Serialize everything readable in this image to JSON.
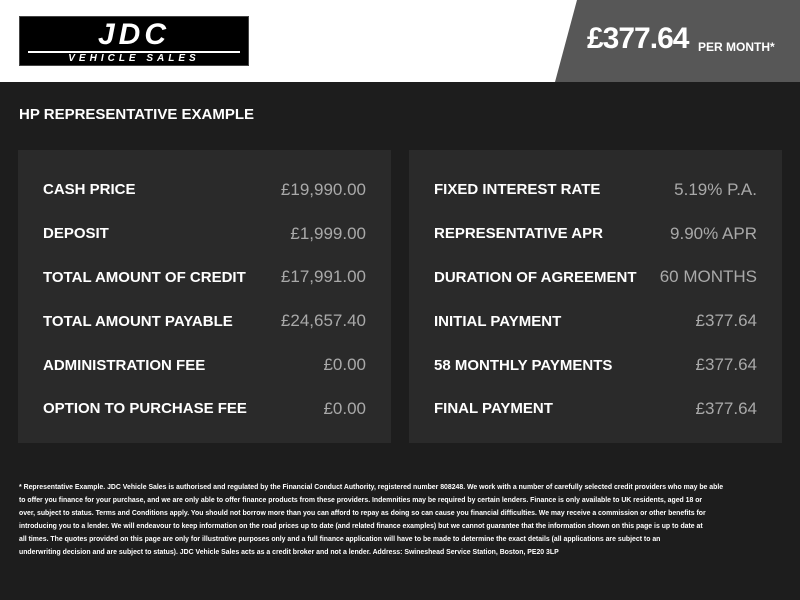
{
  "logo": {
    "name": "JDC",
    "tagline": "VEHICLE SALES"
  },
  "header": {
    "price": "£377.64",
    "per_month": "PER MONTH*"
  },
  "section_title": "HP REPRESENTATIVE EXAMPLE",
  "left": [
    {
      "label": "CASH PRICE",
      "value": "£19,990.00"
    },
    {
      "label": "DEPOSIT",
      "value": "£1,999.00"
    },
    {
      "label": "TOTAL AMOUNT OF CREDIT",
      "value": "£17,991.00"
    },
    {
      "label": "TOTAL AMOUNT PAYABLE",
      "value": "£24,657.40"
    },
    {
      "label": "ADMINISTRATION FEE",
      "value": "£0.00"
    },
    {
      "label": "OPTION TO PURCHASE FEE",
      "value": "£0.00"
    }
  ],
  "right": [
    {
      "label": "FIXED INTEREST RATE",
      "value": "5.19% P.A."
    },
    {
      "label": "REPRESENTATIVE APR",
      "value": "9.90% APR"
    },
    {
      "label": "DURATION OF AGREEMENT",
      "value": "60 MONTHS"
    },
    {
      "label": "INITIAL PAYMENT",
      "value": "£377.64"
    },
    {
      "label": "58 MONTHLY PAYMENTS",
      "value": "£377.64"
    },
    {
      "label": "FINAL PAYMENT",
      "value": "£377.64"
    }
  ],
  "disclaimer": [
    "* Representative Example. JDC Vehicle Sales is authorised and regulated by the Financial Conduct Authority, registered number 808248. We work with a number of carefully selected credit providers who may be able",
    "to offer you finance for your purchase, and we are only able to offer finance products from these providers. Indemnities may be required by certain lenders. Finance is only available to UK residents, aged 18 or",
    "over, subject to status. Terms and Conditions apply. You should not borrow more than you can afford to repay as doing so can cause you financial difficulties. We may receive a commission or other benefits for",
    "introducing you to a lender. We will endeavour to keep information on the road prices up to date (and related finance examples) but we cannot guarantee that the information shown on this page is up to date at",
    "all times. The quotes provided on this page are only for illustrative purposes only and a full finance application will have to be made to determine the exact details (all applications are subject to an",
    "underwriting decision and are subject to status). JDC Vehicle Sales acts as a credit broker and not a lender. Address: Swineshead Service Station, Boston, PE20 3LP"
  ]
}
